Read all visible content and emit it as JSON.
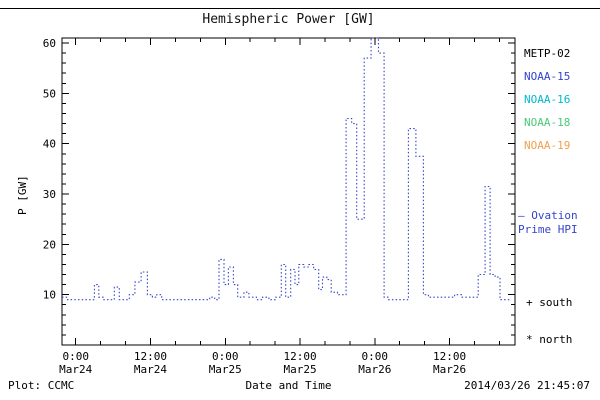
{
  "title": "Hemispheric Power [GW]",
  "footer": {
    "plot_credit": "Plot: CCMC",
    "timestamp": "2014/03/26 21:45:07"
  },
  "axes": {
    "ylabel": "P [GW]",
    "xlabel": "Date and Time",
    "yticks": [
      10,
      20,
      30,
      40,
      50,
      60
    ],
    "xticks": [
      {
        "time": "0:00",
        "date": "Mar24",
        "t": 0
      },
      {
        "time": "12:00",
        "date": "Mar24",
        "t": 12
      },
      {
        "time": "0:00",
        "date": "Mar25",
        "t": 24
      },
      {
        "time": "12:00",
        "date": "Mar25",
        "t": 36
      },
      {
        "time": "0:00",
        "date": "Mar26",
        "t": 48
      },
      {
        "time": "12:00",
        "date": "Mar26",
        "t": 60
      }
    ]
  },
  "legend": {
    "satellites": [
      {
        "label": "METP-02",
        "color": "#000000"
      },
      {
        "label": "NOAA-15",
        "color": "#3344cc"
      },
      {
        "label": "NOAA-16",
        "color": "#00b8cc"
      },
      {
        "label": "NOAA-18",
        "color": "#4cc878"
      },
      {
        "label": "NOAA-19",
        "color": "#f0a050"
      }
    ],
    "model_line1": "— Ovation",
    "model_line2": "Prime HPI",
    "model_color": "#3344cc",
    "south_label": "+ south",
    "north_label": "* north"
  },
  "chart_data": {
    "type": "line",
    "subtype": "dotted-step",
    "title": "Hemispheric Power [GW]",
    "xlabel": "Date and Time",
    "ylabel": "P [GW]",
    "ylim": [
      0,
      61
    ],
    "xlim_hours": [
      -2.2,
      70.5
    ],
    "x_origin": "2014 Mar24 00:00",
    "x_units": "hours since Mar24 00:00",
    "grid": false,
    "legend_position": "right",
    "series": [
      {
        "name": "Ovation Prime HPI",
        "color": "#3344cc",
        "style": "dotted-step",
        "points": [
          [
            -2.2,
            9.5
          ],
          [
            -1.3,
            9
          ],
          [
            3.0,
            12
          ],
          [
            3.7,
            9.5
          ],
          [
            4.4,
            9
          ],
          [
            6.2,
            11.5
          ],
          [
            7.0,
            9
          ],
          [
            8.6,
            10
          ],
          [
            9.5,
            12.5
          ],
          [
            10.5,
            14.5
          ],
          [
            11.5,
            10
          ],
          [
            12.3,
            9.5
          ],
          [
            13.0,
            10
          ],
          [
            13.8,
            9
          ],
          [
            21.5,
            9.5
          ],
          [
            22.3,
            9
          ],
          [
            23.0,
            17
          ],
          [
            23.8,
            12
          ],
          [
            24.5,
            15.5
          ],
          [
            25.3,
            12
          ],
          [
            26.0,
            9.5
          ],
          [
            27.0,
            10.5
          ],
          [
            27.8,
            9.5
          ],
          [
            29.0,
            9
          ],
          [
            30.0,
            9.5
          ],
          [
            31.0,
            9
          ],
          [
            32.0,
            9.5
          ],
          [
            33.0,
            16
          ],
          [
            33.7,
            9.5
          ],
          [
            34.5,
            15
          ],
          [
            35.2,
            12
          ],
          [
            35.8,
            16
          ],
          [
            36.6,
            15.5
          ],
          [
            37.4,
            16
          ],
          [
            38.2,
            15
          ],
          [
            39.0,
            11
          ],
          [
            39.6,
            13.5
          ],
          [
            40.3,
            13
          ],
          [
            41.0,
            10.5
          ],
          [
            42.0,
            10
          ],
          [
            43.4,
            45
          ],
          [
            44.3,
            44
          ],
          [
            45.1,
            25
          ],
          [
            46.3,
            57
          ],
          [
            47.4,
            61
          ],
          [
            48.6,
            58
          ],
          [
            49.5,
            9.5
          ],
          [
            50.2,
            9
          ],
          [
            53.4,
            43
          ],
          [
            54.6,
            37.5
          ],
          [
            55.8,
            10
          ],
          [
            56.6,
            9.5
          ],
          [
            60.8,
            10
          ],
          [
            61.9,
            9.5
          ],
          [
            64.6,
            14
          ],
          [
            65.7,
            31.5
          ],
          [
            66.5,
            14
          ],
          [
            67.3,
            13.5
          ],
          [
            68.1,
            9
          ],
          [
            69.8,
            9
          ]
        ]
      }
    ]
  }
}
